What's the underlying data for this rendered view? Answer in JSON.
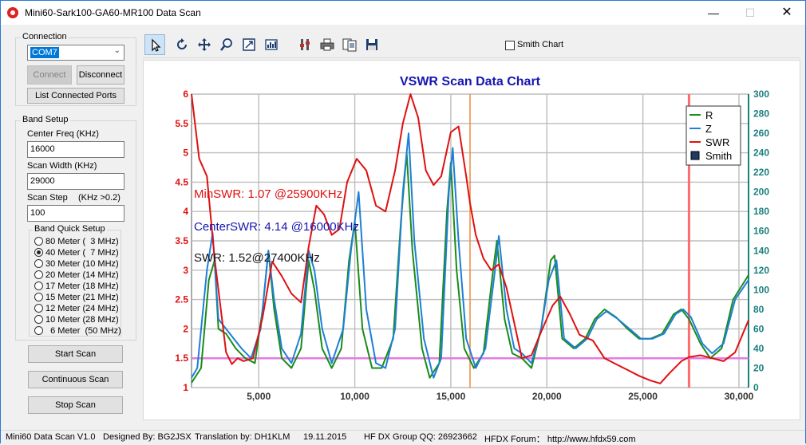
{
  "window": {
    "title": "Mini60-Sark100-GA60-MR100 Data Scan"
  },
  "connection": {
    "group_title": "Connection",
    "port_value": "COM7",
    "connect_label": "Connect",
    "disconnect_label": "Disconnect",
    "list_ports_label": "List Connected Ports"
  },
  "band_setup": {
    "group_title": "Band Setup",
    "center_freq_label": "Center Freq  (KHz)",
    "center_freq_value": "16000",
    "scan_width_label": "Scan Width   (KHz)",
    "scan_width_value": "29000",
    "scan_step_label": "Scan Step",
    "scan_step_hint": "(KHz >0.2)",
    "scan_step_value": "100",
    "quick_setup_title": "Band Quick Setup",
    "bands": [
      {
        "label": "80 Meter (  3 MHz)",
        "selected": false
      },
      {
        "label": "40 Meter (  7 MHz)",
        "selected": true
      },
      {
        "label": "30 Meter (10 MHz)",
        "selected": false
      },
      {
        "label": "20 Meter (14 MHz)",
        "selected": false
      },
      {
        "label": "17 Meter (18 MHz)",
        "selected": false
      },
      {
        "label": "15 Meter (21 MHz)",
        "selected": false
      },
      {
        "label": "12 Meter (24 MHz)",
        "selected": false
      },
      {
        "label": "10 Meter (28 MHz)",
        "selected": false
      },
      {
        "label": "  6 Meter  (50 MHz)",
        "selected": false
      }
    ]
  },
  "actions": {
    "start_scan": "Start Scan",
    "continuous_scan": "Continuous Scan",
    "stop_scan": "Stop Scan"
  },
  "toolbar": {
    "icons": [
      "pointer-icon",
      "rotate-icon",
      "move-icon",
      "zoom-icon",
      "zoom-box-icon",
      "chart-properties-icon",
      "tools-icon",
      "print-icon",
      "copy-icon",
      "save-icon"
    ],
    "smith_chart_label": "Smith Chart",
    "smith_chart_checked": false
  },
  "chart_data": {
    "type": "line",
    "title": "VSWR Scan Data Chart",
    "xlim": [
      1500,
      30500
    ],
    "ylim_left": [
      1,
      6
    ],
    "ylim_right": [
      0,
      300
    ],
    "x_ticks": [
      "5,000",
      "10,000",
      "15,000",
      "20,000",
      "25,000",
      "30,000"
    ],
    "x_tick_values": [
      5000,
      10000,
      15000,
      20000,
      25000,
      30000
    ],
    "y_left_ticks": [
      "6",
      "5.5",
      "5",
      "4.5",
      "4",
      "3.5",
      "3",
      "2.5",
      "2",
      "1.5",
      "1"
    ],
    "y_left_values": [
      6,
      5.5,
      5,
      4.5,
      4,
      3.5,
      3,
      2.5,
      2,
      1.5,
      1
    ],
    "y_right_ticks": [
      "300",
      "280",
      "260",
      "240",
      "220",
      "200",
      "180",
      "160",
      "140",
      "120",
      "100",
      "80",
      "60",
      "40",
      "20",
      "0"
    ],
    "y_right_values": [
      300,
      280,
      260,
      240,
      220,
      200,
      180,
      160,
      140,
      120,
      100,
      80,
      60,
      40,
      20,
      0
    ],
    "grid": true,
    "legend_position": "top-right",
    "legend": [
      {
        "name": "R",
        "color": "#1a8c1a"
      },
      {
        "name": "Z",
        "color": "#1e7fd6"
      },
      {
        "name": "SWR",
        "color": "#e01010"
      },
      {
        "name": "Smith",
        "color": "#1f3a66"
      }
    ],
    "annotations": {
      "min_swr": "MinSWR: 1.07 @25900KHz",
      "center_swr": "CenterSWR: 4.14 @16000KHz",
      "swr": "SWR: 1.52@27400KHz"
    },
    "markers": {
      "center_freq": 16000,
      "cursor_freq": 27400,
      "swr_reference": 1.5
    },
    "series": [
      {
        "name": "SWR",
        "axis": "left",
        "color": "#e01010",
        "points": [
          [
            1500,
            6
          ],
          [
            1900,
            4.9
          ],
          [
            2300,
            4.6
          ],
          [
            2700,
            3.2
          ],
          [
            3000,
            2.4
          ],
          [
            3300,
            1.6
          ],
          [
            3600,
            1.4
          ],
          [
            3900,
            1.5
          ],
          [
            4200,
            1.45
          ],
          [
            4700,
            1.5
          ],
          [
            5200,
            2.2
          ],
          [
            5700,
            3.15
          ],
          [
            6200,
            2.9
          ],
          [
            6700,
            2.6
          ],
          [
            7200,
            2.45
          ],
          [
            7600,
            3.4
          ],
          [
            8000,
            4.1
          ],
          [
            8400,
            3.95
          ],
          [
            8800,
            3.6
          ],
          [
            9200,
            3.7
          ],
          [
            9600,
            4.5
          ],
          [
            10100,
            4.9
          ],
          [
            10600,
            4.7
          ],
          [
            11100,
            4.1
          ],
          [
            11600,
            4.0
          ],
          [
            12100,
            4.7
          ],
          [
            12500,
            5.5
          ],
          [
            12900,
            6.0
          ],
          [
            13300,
            5.6
          ],
          [
            13700,
            4.7
          ],
          [
            14100,
            4.45
          ],
          [
            14500,
            4.6
          ],
          [
            15000,
            5.35
          ],
          [
            15400,
            5.45
          ],
          [
            15800,
            4.6
          ],
          [
            16000,
            4.14
          ],
          [
            16300,
            3.6
          ],
          [
            16700,
            3.2
          ],
          [
            17100,
            3.0
          ],
          [
            17500,
            3.1
          ],
          [
            17900,
            2.7
          ],
          [
            18300,
            2.1
          ],
          [
            18700,
            1.5
          ],
          [
            19200,
            1.55
          ],
          [
            19700,
            1.95
          ],
          [
            20300,
            2.4
          ],
          [
            20700,
            2.55
          ],
          [
            21200,
            2.25
          ],
          [
            21700,
            1.9
          ],
          [
            22400,
            1.8
          ],
          [
            23000,
            1.5
          ],
          [
            23600,
            1.4
          ],
          [
            24200,
            1.3
          ],
          [
            24800,
            1.2
          ],
          [
            25400,
            1.12
          ],
          [
            25900,
            1.07
          ],
          [
            26400,
            1.25
          ],
          [
            27000,
            1.45
          ],
          [
            27400,
            1.52
          ],
          [
            28000,
            1.55
          ],
          [
            28600,
            1.5
          ],
          [
            29200,
            1.45
          ],
          [
            29800,
            1.6
          ],
          [
            30500,
            2.15
          ]
        ]
      },
      {
        "name": "Z",
        "axis": "right",
        "color": "#1e7fd6",
        "points": [
          [
            1500,
            10
          ],
          [
            1800,
            20
          ],
          [
            2300,
            120
          ],
          [
            2600,
            158
          ],
          [
            2900,
            70
          ],
          [
            3300,
            60
          ],
          [
            3700,
            50
          ],
          [
            4100,
            40
          ],
          [
            4600,
            30
          ],
          [
            5100,
            60
          ],
          [
            5500,
            140
          ],
          [
            5800,
            90
          ],
          [
            6200,
            40
          ],
          [
            6700,
            25
          ],
          [
            7200,
            55
          ],
          [
            7600,
            140
          ],
          [
            7900,
            120
          ],
          [
            8300,
            60
          ],
          [
            8800,
            25
          ],
          [
            9400,
            60
          ],
          [
            9800,
            140
          ],
          [
            10200,
            200
          ],
          [
            10600,
            80
          ],
          [
            11100,
            25
          ],
          [
            11600,
            20
          ],
          [
            12100,
            60
          ],
          [
            12500,
            200
          ],
          [
            12800,
            260
          ],
          [
            13100,
            150
          ],
          [
            13600,
            50
          ],
          [
            14100,
            10
          ],
          [
            14500,
            30
          ],
          [
            14900,
            200
          ],
          [
            15100,
            245
          ],
          [
            15400,
            150
          ],
          [
            15800,
            50
          ],
          [
            16300,
            20
          ],
          [
            16800,
            40
          ],
          [
            17300,
            120
          ],
          [
            17500,
            155
          ],
          [
            17900,
            80
          ],
          [
            18300,
            40
          ],
          [
            18700,
            35
          ],
          [
            19200,
            25
          ],
          [
            19700,
            60
          ],
          [
            20100,
            110
          ],
          [
            20500,
            130
          ],
          [
            20900,
            50
          ],
          [
            21500,
            40
          ],
          [
            22100,
            50
          ],
          [
            22600,
            70
          ],
          [
            23100,
            78
          ],
          [
            23700,
            70
          ],
          [
            24300,
            60
          ],
          [
            24900,
            50
          ],
          [
            25500,
            50
          ],
          [
            26100,
            55
          ],
          [
            26700,
            75
          ],
          [
            27100,
            80
          ],
          [
            27500,
            72
          ],
          [
            28100,
            45
          ],
          [
            28600,
            35
          ],
          [
            29200,
            45
          ],
          [
            29800,
            90
          ],
          [
            30500,
            110
          ]
        ]
      },
      {
        "name": "R",
        "axis": "right",
        "color": "#1a8c1a",
        "points": [
          [
            1500,
            5
          ],
          [
            2000,
            20
          ],
          [
            2400,
            110
          ],
          [
            2700,
            130
          ],
          [
            2900,
            60
          ],
          [
            3300,
            55
          ],
          [
            3800,
            40
          ],
          [
            4300,
            30
          ],
          [
            4800,
            25
          ],
          [
            5200,
            80
          ],
          [
            5500,
            140
          ],
          [
            5800,
            80
          ],
          [
            6200,
            30
          ],
          [
            6700,
            20
          ],
          [
            7200,
            40
          ],
          [
            7600,
            130
          ],
          [
            7900,
            100
          ],
          [
            8300,
            40
          ],
          [
            8800,
            20
          ],
          [
            9300,
            40
          ],
          [
            9700,
            130
          ],
          [
            10000,
            170
          ],
          [
            10400,
            60
          ],
          [
            10900,
            20
          ],
          [
            11400,
            20
          ],
          [
            12000,
            50
          ],
          [
            12400,
            170
          ],
          [
            12700,
            240
          ],
          [
            13000,
            140
          ],
          [
            13500,
            40
          ],
          [
            13900,
            10
          ],
          [
            14400,
            25
          ],
          [
            14800,
            180
          ],
          [
            15000,
            230
          ],
          [
            15300,
            120
          ],
          [
            15700,
            40
          ],
          [
            16200,
            20
          ],
          [
            16700,
            35
          ],
          [
            17200,
            120
          ],
          [
            17400,
            150
          ],
          [
            17800,
            70
          ],
          [
            18200,
            35
          ],
          [
            18700,
            30
          ],
          [
            19200,
            20
          ],
          [
            19700,
            60
          ],
          [
            20200,
            130
          ],
          [
            20400,
            135
          ],
          [
            20800,
            50
          ],
          [
            21400,
            40
          ],
          [
            22000,
            50
          ],
          [
            22500,
            70
          ],
          [
            23000,
            80
          ],
          [
            23600,
            72
          ],
          [
            24200,
            60
          ],
          [
            24800,
            50
          ],
          [
            25400,
            50
          ],
          [
            26000,
            55
          ],
          [
            26600,
            75
          ],
          [
            27000,
            80
          ],
          [
            27400,
            70
          ],
          [
            28000,
            45
          ],
          [
            28500,
            30
          ],
          [
            29100,
            40
          ],
          [
            29700,
            90
          ],
          [
            30500,
            115
          ]
        ]
      }
    ]
  },
  "status": {
    "version": "Mini60 Data Scan V1.0",
    "designer": "Designed By: BG2JSX",
    "translation": "Translation by: DH1KLM",
    "date": "19.11.2015",
    "group": "HF DX Group QQ: 26923662",
    "forum": "HFDX Forum：  http://www.hfdx59.com"
  }
}
